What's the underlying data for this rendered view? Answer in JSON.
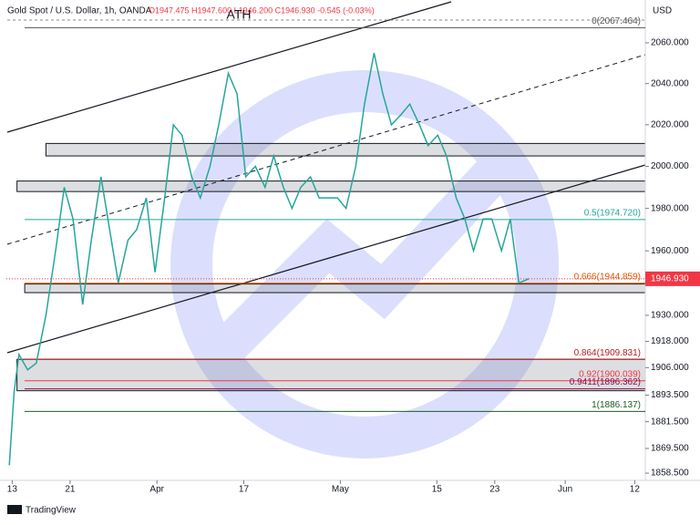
{
  "chart_data": {
    "type": "line",
    "title": "Gold Spot / U.S. Dollar, 1h, OANDA",
    "ohlc": "O1947.475 H1947.600 L1946.200 C1946.930 -0.545 (-0.03%)",
    "currency": "USD",
    "annotation": "ATH",
    "brand": "TradingView",
    "log": true,
    "color": "#26a69a",
    "x": [
      -0.3,
      0.2,
      0.7,
      1.6,
      2.5,
      3.5,
      4.5,
      5.4,
      6.3,
      7.3,
      8.2,
      9.2,
      10.1,
      11.0,
      12.0,
      12.9,
      13.9,
      14.8,
      15.8,
      16.7,
      17.6,
      18.6,
      19.5,
      20.5,
      21.4,
      22.4,
      23.3,
      24.2,
      25.2,
      26.2,
      27.1,
      28.1,
      29.0,
      29.9,
      30.9,
      31.8,
      32.7,
      33.7,
      34.6,
      35.6,
      36.5,
      37.5,
      38.4,
      39.3,
      40.3,
      41.2,
      42.2,
      43.1,
      44.1,
      45.0,
      46.0,
      46.9,
      47.8,
      48.8,
      49.7,
      50.7,
      51.6,
      52.5,
      53.5
    ],
    "values": [
      1862,
      1895,
      1912,
      1905,
      1908,
      1930,
      1960,
      1990,
      1975,
      1935,
      1965,
      1995,
      1970,
      1945,
      1965,
      1970,
      1985,
      1950,
      1985,
      2020,
      2015,
      1995,
      1985,
      2000,
      2020,
      2045,
      2035,
      1995,
      2000,
      1990,
      2005,
      1990,
      1980,
      1990,
      1995,
      1985,
      1985,
      1985,
      1980,
      2000,
      2030,
      2055,
      2035,
      2020,
      2025,
      2030,
      2020,
      2010,
      2015,
      2005,
      1985,
      1975,
      1960,
      1975,
      1975,
      1960,
      1975,
      1945,
      1946.93
    ],
    "xlim": [
      -0.6,
      65.6
    ],
    "xticks": [
      {
        "value": 0,
        "label": "13"
      },
      {
        "value": 6,
        "label": "21"
      },
      {
        "value": 15,
        "label": "Apr"
      },
      {
        "value": 24,
        "label": "17"
      },
      {
        "value": 34,
        "label": "May"
      },
      {
        "value": 44,
        "label": "15"
      },
      {
        "value": 50,
        "label": "23"
      },
      {
        "value": 57.3,
        "label": "Jun"
      },
      {
        "value": 64.5,
        "label": "12"
      }
    ],
    "ylim": [
      1855.3,
      2081.2
    ],
    "yticks": [
      {
        "value": 2060,
        "label": "2060.000"
      },
      {
        "value": 2040,
        "label": "2040.000"
      },
      {
        "value": 2020,
        "label": "2020.000"
      },
      {
        "value": 2000,
        "label": "2000.000"
      },
      {
        "value": 1980,
        "label": "1980.000"
      },
      {
        "value": 1960,
        "label": "1960.000"
      },
      {
        "value": 1930,
        "label": "1930.000"
      },
      {
        "value": 1918,
        "label": "1918.000"
      },
      {
        "value": 1906,
        "label": "1906.000"
      },
      {
        "value": 1893.5,
        "label": "1893.500"
      },
      {
        "value": 1881.5,
        "label": "1881.500"
      },
      {
        "value": 1869.5,
        "label": "1869.500"
      },
      {
        "value": 1858.5,
        "label": "1858.500"
      }
    ],
    "last_price": {
      "value": 1946.93,
      "label": "1946.930",
      "color": "#f23645"
    },
    "levels": [
      {
        "value": 2067.464,
        "label": "0(2067.464)",
        "color": "#555555"
      },
      {
        "value": 1974.72,
        "label": "0.5(1974.720)",
        "color": "#26a69a"
      },
      {
        "value": 1944.859,
        "label": "0.666(1944.859)",
        "color": "#e65100"
      },
      {
        "value": 1909.831,
        "label": "0.864(1909.831)",
        "color": "#b71c1c"
      },
      {
        "value": 1900.039,
        "label": "0.92(1900.039)",
        "color": "#f23645"
      },
      {
        "value": 1896.362,
        "label": "0.9411(1896.362)",
        "color": "#880e4f"
      },
      {
        "value": 1886.137,
        "label": "1(1886.137)",
        "color": "#1b5e20"
      }
    ],
    "zones": [
      {
        "x_start": 3.5,
        "low": 2005,
        "high": 2011
      },
      {
        "x_start": 0.5,
        "low": 1988,
        "high": 1993
      },
      {
        "x_start": 1.3,
        "low": 1940.5,
        "high": 1944.5
      },
      {
        "x_start": 0.5,
        "low": 1895.5,
        "high": 1909.8
      }
    ]
  }
}
